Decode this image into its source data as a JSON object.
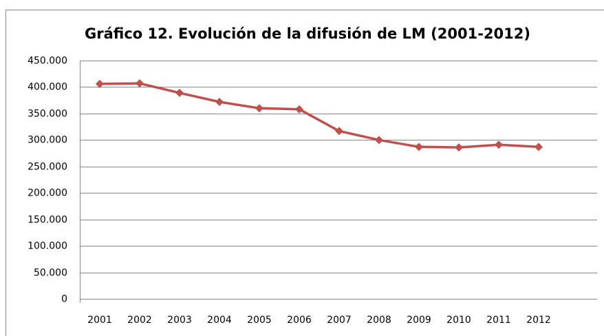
{
  "chart_data": {
    "type": "line",
    "title": "Gráfico 12. Evolución de la difusión de LM (2001-2012)",
    "categories": [
      "2001",
      "2002",
      "2003",
      "2004",
      "2005",
      "2006",
      "2007",
      "2008",
      "2009",
      "2010",
      "2011",
      "2012"
    ],
    "series": [
      {
        "name": "LM",
        "color": "#c0504d",
        "values": [
          406000,
          407000,
          389000,
          372000,
          360000,
          358000,
          317000,
          300000,
          287000,
          286000,
          291000,
          287000
        ]
      }
    ],
    "ylim": [
      0,
      450000
    ],
    "yticks": [
      0,
      {
        "value": 50000,
        "label": "50.000"
      },
      {
        "value": 100000,
        "label": "100.000"
      },
      {
        "value": 150000,
        "label": "150.000"
      },
      {
        "value": 200000,
        "label": "200.000"
      },
      {
        "value": 250000,
        "label": "250.000"
      },
      {
        "value": 300000,
        "label": "300.000"
      },
      {
        "value": 350000,
        "label": "350.000"
      },
      {
        "value": 400000,
        "label": "400.000"
      },
      {
        "value": 450000,
        "label": "450.000"
      }
    ],
    "grid": true
  }
}
